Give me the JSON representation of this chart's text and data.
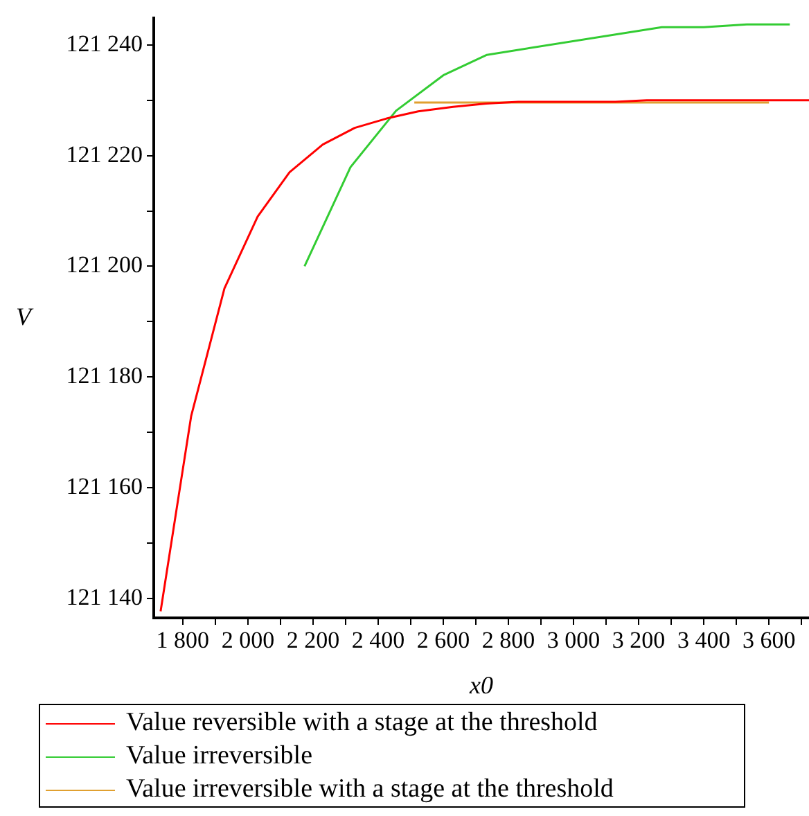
{
  "chart_data": {
    "type": "line",
    "xlabel": "x0",
    "ylabel": "V",
    "xlim": [
      1711,
      3723
    ],
    "ylim": [
      121136.5,
      121244.8
    ],
    "xticks": [
      {
        "value": 1800,
        "label": "1 800"
      },
      {
        "value": 1900,
        "label": null
      },
      {
        "value": 2000,
        "label": "2 000"
      },
      {
        "value": 2100,
        "label": null
      },
      {
        "value": 2200,
        "label": "2 200"
      },
      {
        "value": 2300,
        "label": null
      },
      {
        "value": 2400,
        "label": "2 400"
      },
      {
        "value": 2500,
        "label": null
      },
      {
        "value": 2600,
        "label": "2 600"
      },
      {
        "value": 2700,
        "label": null
      },
      {
        "value": 2800,
        "label": "2 800"
      },
      {
        "value": 2900,
        "label": null
      },
      {
        "value": 3000,
        "label": "3 000"
      },
      {
        "value": 3100,
        "label": null
      },
      {
        "value": 3200,
        "label": "3 200"
      },
      {
        "value": 3300,
        "label": null
      },
      {
        "value": 3400,
        "label": "3 400"
      },
      {
        "value": 3500,
        "label": null
      },
      {
        "value": 3600,
        "label": "3 600"
      },
      {
        "value": 3700,
        "label": null
      }
    ],
    "yticks": [
      {
        "value": 121140,
        "label": "121 140"
      },
      {
        "value": 121150,
        "label": null
      },
      {
        "value": 121160,
        "label": "121 160"
      },
      {
        "value": 121170,
        "label": null
      },
      {
        "value": 121180,
        "label": "121 180"
      },
      {
        "value": 121190,
        "label": null
      },
      {
        "value": 121200,
        "label": "121 200"
      },
      {
        "value": 121210,
        "label": null
      },
      {
        "value": 121220,
        "label": "121 220"
      },
      {
        "value": 121230,
        "label": null
      },
      {
        "value": 121240,
        "label": "121 240"
      }
    ],
    "grid": false,
    "legend": "bottom",
    "marker": "none",
    "line_style": "solid",
    "series": [
      {
        "name": "Value reversible with a stage at the threshold",
        "color": "#ff0000",
        "x": [
          1732,
          1826,
          1928,
          2030,
          2128,
          2230,
          2328,
          2426,
          2523,
          2630,
          2732,
          2830,
          3128,
          3225,
          3723
        ],
        "values": [
          121137.7,
          121173,
          121196,
          121209,
          121217,
          121222,
          121225,
          121226.7,
          121228,
          121228.8,
          121229.4,
          121229.7,
          121229.7,
          121230,
          121230
        ]
      },
      {
        "name": "Value irreversible",
        "color": "#33cc33",
        "x": [
          2174,
          2315,
          2455,
          2600,
          2734,
          3271,
          3400,
          3532,
          3664
        ],
        "values": [
          121200,
          121217.9,
          121228.1,
          121234.5,
          121238.2,
          121243.2,
          121243.2,
          121243.7,
          121243.7
        ]
      },
      {
        "name": "Value irreversible with a stage at the threshold",
        "color": "#e0a030",
        "x": [
          2511,
          3050,
          3600
        ],
        "values": [
          121229.6,
          121229.6,
          121229.6
        ]
      }
    ]
  }
}
